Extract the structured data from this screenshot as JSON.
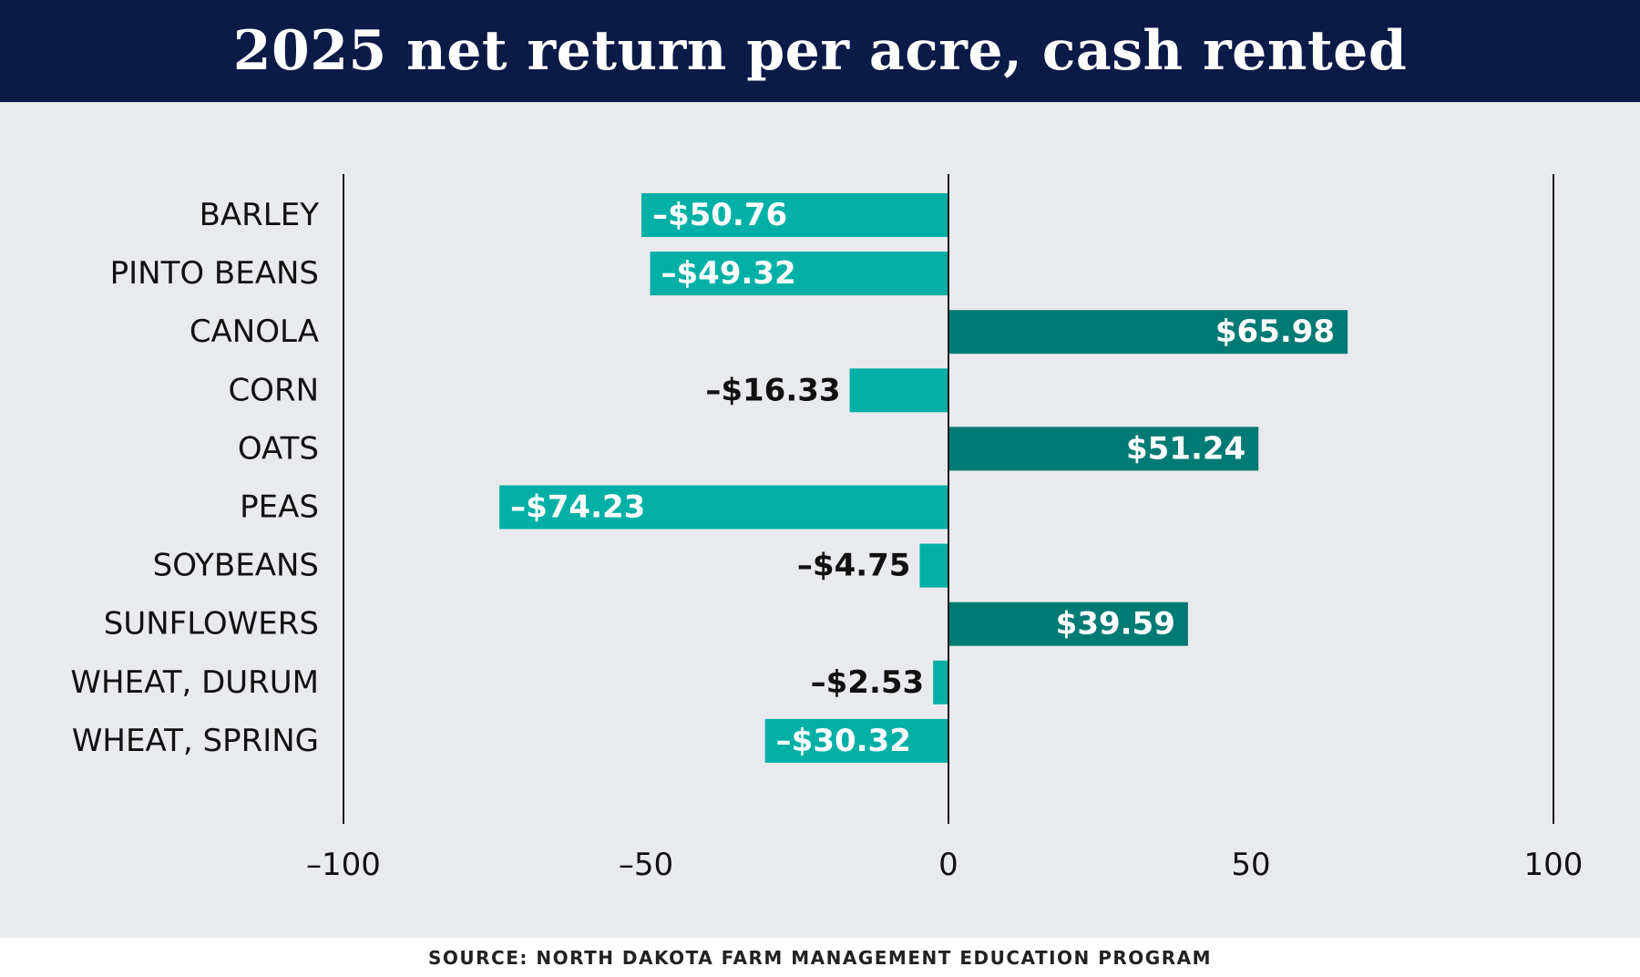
{
  "title": "2025 net return per acre, cash rented",
  "source": "SOURCE: NORTH DAKOTA FARM MANAGEMENT EDUCATION PROGRAM",
  "colors": {
    "header_bg": "#0b1a47",
    "plot_bg": "#e9eaee",
    "negative_bar": "#00b0a6",
    "positive_bar": "#007a74",
    "axis_line": "#1a1a1a"
  },
  "chart_data": {
    "type": "bar",
    "orientation": "horizontal",
    "title": "2025 net return per acre, cash rented",
    "categories": [
      "BARLEY",
      "PINTO BEANS",
      "CANOLA",
      "CORN",
      "OATS",
      "PEAS",
      "SOYBEANS",
      "SUNFLOWERS",
      "WHEAT, DURUM",
      "WHEAT, SPRING"
    ],
    "values": [
      -50.76,
      -49.32,
      65.98,
      -16.33,
      51.24,
      -74.23,
      -4.75,
      39.59,
      -2.53,
      -30.32
    ],
    "data_labels": [
      "–$50.76",
      "–$49.32",
      "$65.98",
      "–$16.33",
      "$51.24",
      "–$74.23",
      "–$4.75",
      "$39.59",
      "–$2.53",
      "–$30.32"
    ],
    "xlim": [
      -100,
      100
    ],
    "xticks": [
      -100,
      -50,
      0,
      50,
      100
    ],
    "xtick_labels": [
      "–100",
      "–50",
      "0",
      "50",
      "100"
    ],
    "grid": "vertical lines at -100, 0, 100",
    "legend": "none"
  }
}
